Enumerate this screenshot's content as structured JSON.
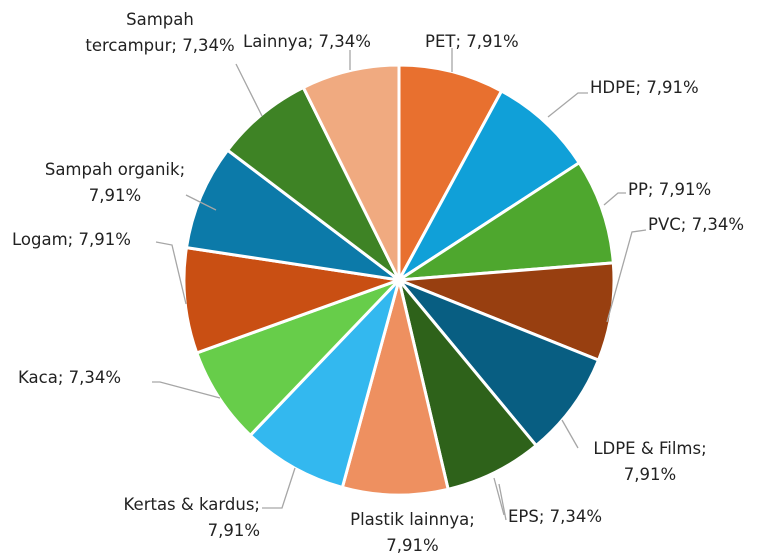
{
  "chart_data": {
    "type": "pie",
    "categories": [
      "PET",
      "HDPE",
      "PP",
      "PVC",
      "LDPE & Films",
      "EPS",
      "Plastik lainnya",
      "Kertas & kardus",
      "Kaca",
      "Logam",
      "Sampah organik",
      "Sampah tercampur",
      "Lainnya"
    ],
    "values": [
      7.91,
      7.91,
      7.91,
      7.34,
      7.91,
      7.34,
      7.91,
      7.91,
      7.34,
      7.91,
      7.91,
      7.34,
      7.34
    ],
    "value_labels": [
      "7,91%",
      "7,91%",
      "7,91%",
      "7,34%",
      "7,91%",
      "7,34%",
      "7,91%",
      "7,91%",
      "7,34%",
      "7,91%",
      "7,91%",
      "7,34%",
      "7,34%"
    ],
    "label_separator": "; ",
    "colors": [
      "#e8702f",
      "#10a0d8",
      "#4ea72e",
      "#983f10",
      "#085e82",
      "#2e621a",
      "#ee9060",
      "#33b8ef",
      "#67cd4a",
      "#c94f13",
      "#0c7aa9",
      "#3e8325",
      "#f0aa80"
    ]
  }
}
